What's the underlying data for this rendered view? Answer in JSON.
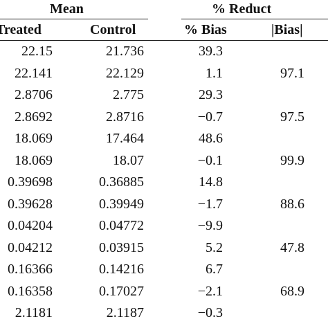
{
  "header": {
    "group_mean": "Mean",
    "group_reduct": "% Reduct",
    "col_treated": "Treated",
    "col_control": "Control",
    "col_pct_bias": "% Bias",
    "col_abs_bias": "|Bias|"
  },
  "rows": [
    {
      "treated": "22.15",
      "control": "21.736",
      "pct_bias": "39.3",
      "abs_bias": ""
    },
    {
      "treated": "22.141",
      "control": "22.129",
      "pct_bias": "1.1",
      "abs_bias": "97.1"
    },
    {
      "treated": "2.8706",
      "control": "2.775",
      "pct_bias": "29.3",
      "abs_bias": ""
    },
    {
      "treated": "2.8692",
      "control": "2.8716",
      "pct_bias": "−0.7",
      "abs_bias": "97.5"
    },
    {
      "treated": "18.069",
      "control": "17.464",
      "pct_bias": "48.6",
      "abs_bias": ""
    },
    {
      "treated": "18.069",
      "control": "18.07",
      "pct_bias": "−0.1",
      "abs_bias": "99.9"
    },
    {
      "treated": "0.39698",
      "control": "0.36885",
      "pct_bias": "14.8",
      "abs_bias": ""
    },
    {
      "treated": "0.39628",
      "control": "0.39949",
      "pct_bias": "−1.7",
      "abs_bias": "88.6"
    },
    {
      "treated": "0.04204",
      "control": "0.04772",
      "pct_bias": "−9.9",
      "abs_bias": ""
    },
    {
      "treated": "0.04212",
      "control": "0.03915",
      "pct_bias": "5.2",
      "abs_bias": "47.8"
    },
    {
      "treated": "0.16366",
      "control": "0.14216",
      "pct_bias": "6.7",
      "abs_bias": ""
    },
    {
      "treated": "0.16358",
      "control": "0.17027",
      "pct_bias": "−2.1",
      "abs_bias": "68.9"
    },
    {
      "treated": "2.1181",
      "control": "2.1187",
      "pct_bias": "−0.3",
      "abs_bias": ""
    }
  ]
}
